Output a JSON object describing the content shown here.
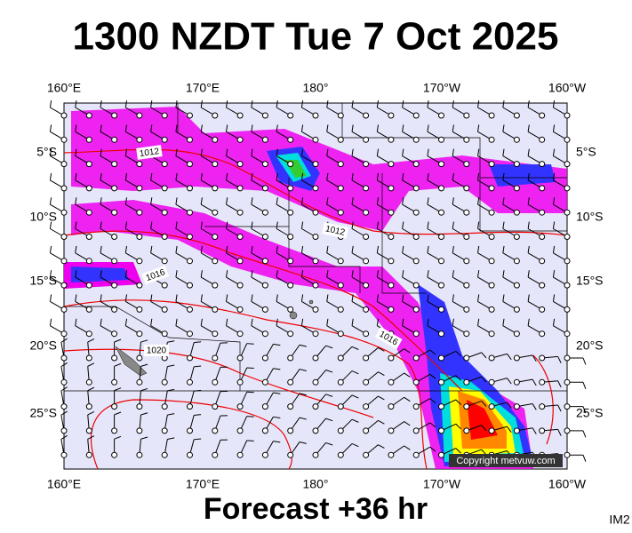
{
  "header": {
    "title": "1300 NZDT Tue 7 Oct 2025"
  },
  "map": {
    "top_labels": [
      "160°E",
      "170°E",
      "180°",
      "170°W",
      "160°W"
    ],
    "bottom_labels": [
      "160°E",
      "170°E",
      "180°",
      "170°W",
      "160°W"
    ],
    "left_labels": [
      "5°S",
      "10°S",
      "15°S",
      "20°S",
      "25°S"
    ],
    "right_labels": [
      "5°S",
      "10°S",
      "15°S",
      "20°S",
      "25°S"
    ],
    "isobar_labels": [
      "1012",
      "1012",
      "1016",
      "1016",
      "1020"
    ],
    "copyright": "Copyright metvuw.com"
  },
  "footer": {
    "forecast": "Forecast +36 hr",
    "code": "IM2"
  }
}
